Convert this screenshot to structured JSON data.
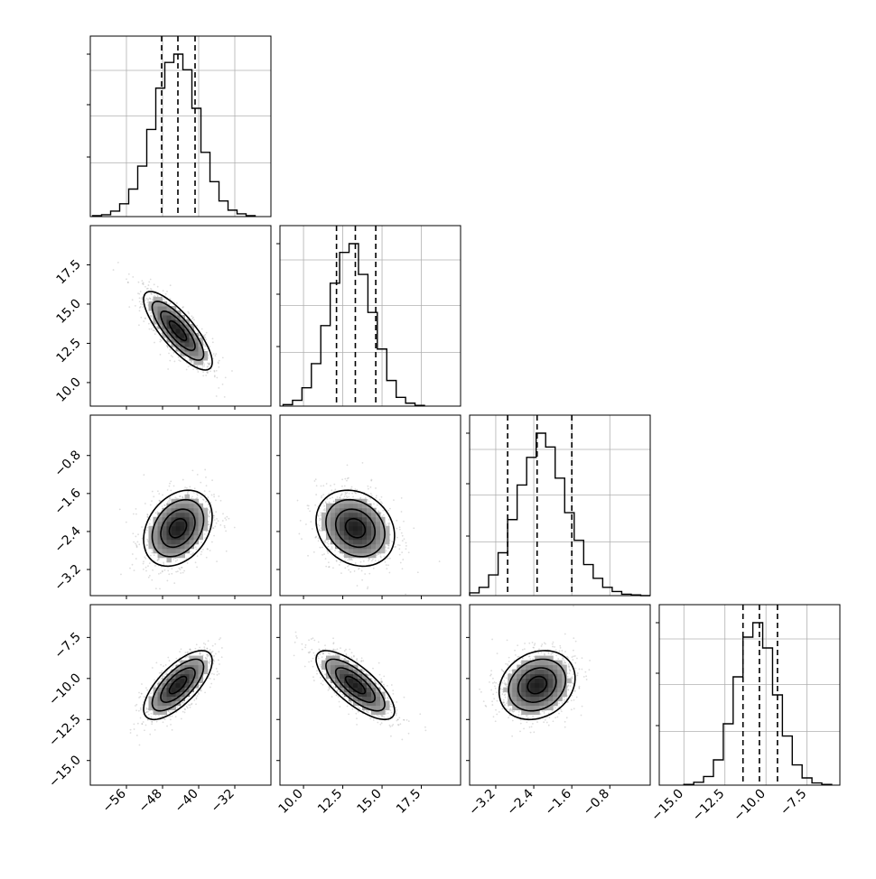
{
  "chart_data": {
    "type": "corner",
    "title": "",
    "grid": true,
    "params": [
      {
        "range": [
          -64,
          -24
        ],
        "ticks": [
          "−56",
          "−48",
          "−40",
          "−32"
        ],
        "tick_values": [
          -56,
          -48,
          -40,
          -32
        ],
        "quantiles": [
          -48.2,
          -44.6,
          -40.8
        ],
        "hist_x": [
          -62.5,
          -60.5,
          -58.5,
          -56.5,
          -54.5,
          -52.5,
          -50.5,
          -48.5,
          -46.5,
          -44.5,
          -42.5,
          -40.5,
          -38.5,
          -36.5,
          -34.5,
          -32.5,
          -30.5,
          -28.5
        ],
        "hist_counts": [
          1,
          2,
          6,
          14,
          30,
          55,
          95,
          140,
          168,
          177,
          160,
          118,
          70,
          38,
          17,
          7,
          3,
          1
        ]
      },
      {
        "range": [
          8.5,
          20.0
        ],
        "ticks": [
          "10.0",
          "12.5",
          "15.0",
          "17.5"
        ],
        "tick_values": [
          10.0,
          12.5,
          15.0,
          17.5
        ],
        "quantiles": [
          12.1,
          13.3,
          14.6
        ],
        "hist_x": [
          9.0,
          9.6,
          10.2,
          10.8,
          11.4,
          12.0,
          12.6,
          13.2,
          13.8,
          14.4,
          15.0,
          15.6,
          16.2,
          16.8,
          17.4
        ],
        "hist_counts": [
          2,
          8,
          25,
          58,
          110,
          168,
          210,
          222,
          180,
          128,
          78,
          35,
          12,
          4,
          1
        ]
      },
      {
        "range": [
          -3.75,
          0.05
        ],
        "ticks": [
          "−3.2",
          "−2.4",
          "−1.6",
          "−0.8"
        ],
        "tick_values": [
          -3.2,
          -2.4,
          -1.6,
          -0.8
        ],
        "quantiles": [
          -2.95,
          -2.33,
          -1.6
        ],
        "hist_x": [
          -3.65,
          -3.45,
          -3.25,
          -3.05,
          -2.85,
          -2.65,
          -2.45,
          -2.25,
          -2.05,
          -1.85,
          -1.65,
          -1.45,
          -1.25,
          -1.05,
          -0.85,
          -0.65,
          -0.45,
          -0.25,
          -0.05
        ],
        "hist_counts": [
          4,
          12,
          30,
          62,
          110,
          160,
          200,
          235,
          215,
          170,
          120,
          80,
          45,
          25,
          12,
          6,
          2,
          1,
          0
        ]
      },
      {
        "range": [
          -16.5,
          -5.5
        ],
        "ticks": [
          "−15.0",
          "−12.5",
          "−10.0",
          "−7.5"
        ],
        "tick_values": [
          -15.0,
          -12.5,
          -10.0,
          -7.5
        ],
        "quantiles": [
          -11.4,
          -10.4,
          -9.3
        ],
        "hist_x": [
          -14.7,
          -14.1,
          -13.5,
          -12.9,
          -12.3,
          -11.7,
          -11.1,
          -10.5,
          -9.9,
          -9.3,
          -8.7,
          -8.1,
          -7.5,
          -6.9,
          -6.3
        ],
        "hist_counts": [
          1,
          4,
          12,
          35,
          85,
          150,
          205,
          225,
          190,
          125,
          68,
          28,
          10,
          3,
          1
        ]
      }
    ],
    "pairs": [
      {
        "row": 1,
        "col": 0,
        "mean": [
          -44.6,
          13.3
        ],
        "sd": [
          3.8,
          1.25
        ],
        "corr": -0.8
      },
      {
        "row": 2,
        "col": 0,
        "mean": [
          -44.6,
          -2.33
        ],
        "sd": [
          3.8,
          0.4
        ],
        "corr": 0.3
      },
      {
        "row": 2,
        "col": 1,
        "mean": [
          13.3,
          -2.33
        ],
        "sd": [
          1.25,
          0.4
        ],
        "corr": -0.2
      },
      {
        "row": 3,
        "col": 0,
        "mean": [
          -44.6,
          -10.4
        ],
        "sd": [
          3.8,
          1.05
        ],
        "corr": 0.7
      },
      {
        "row": 3,
        "col": 1,
        "mean": [
          13.3,
          -10.4
        ],
        "sd": [
          1.25,
          1.05
        ],
        "corr": -0.75
      },
      {
        "row": 3,
        "col": 2,
        "mean": [
          -2.33,
          -10.4
        ],
        "sd": [
          0.4,
          1.05
        ],
        "corr": 0.2
      }
    ]
  }
}
